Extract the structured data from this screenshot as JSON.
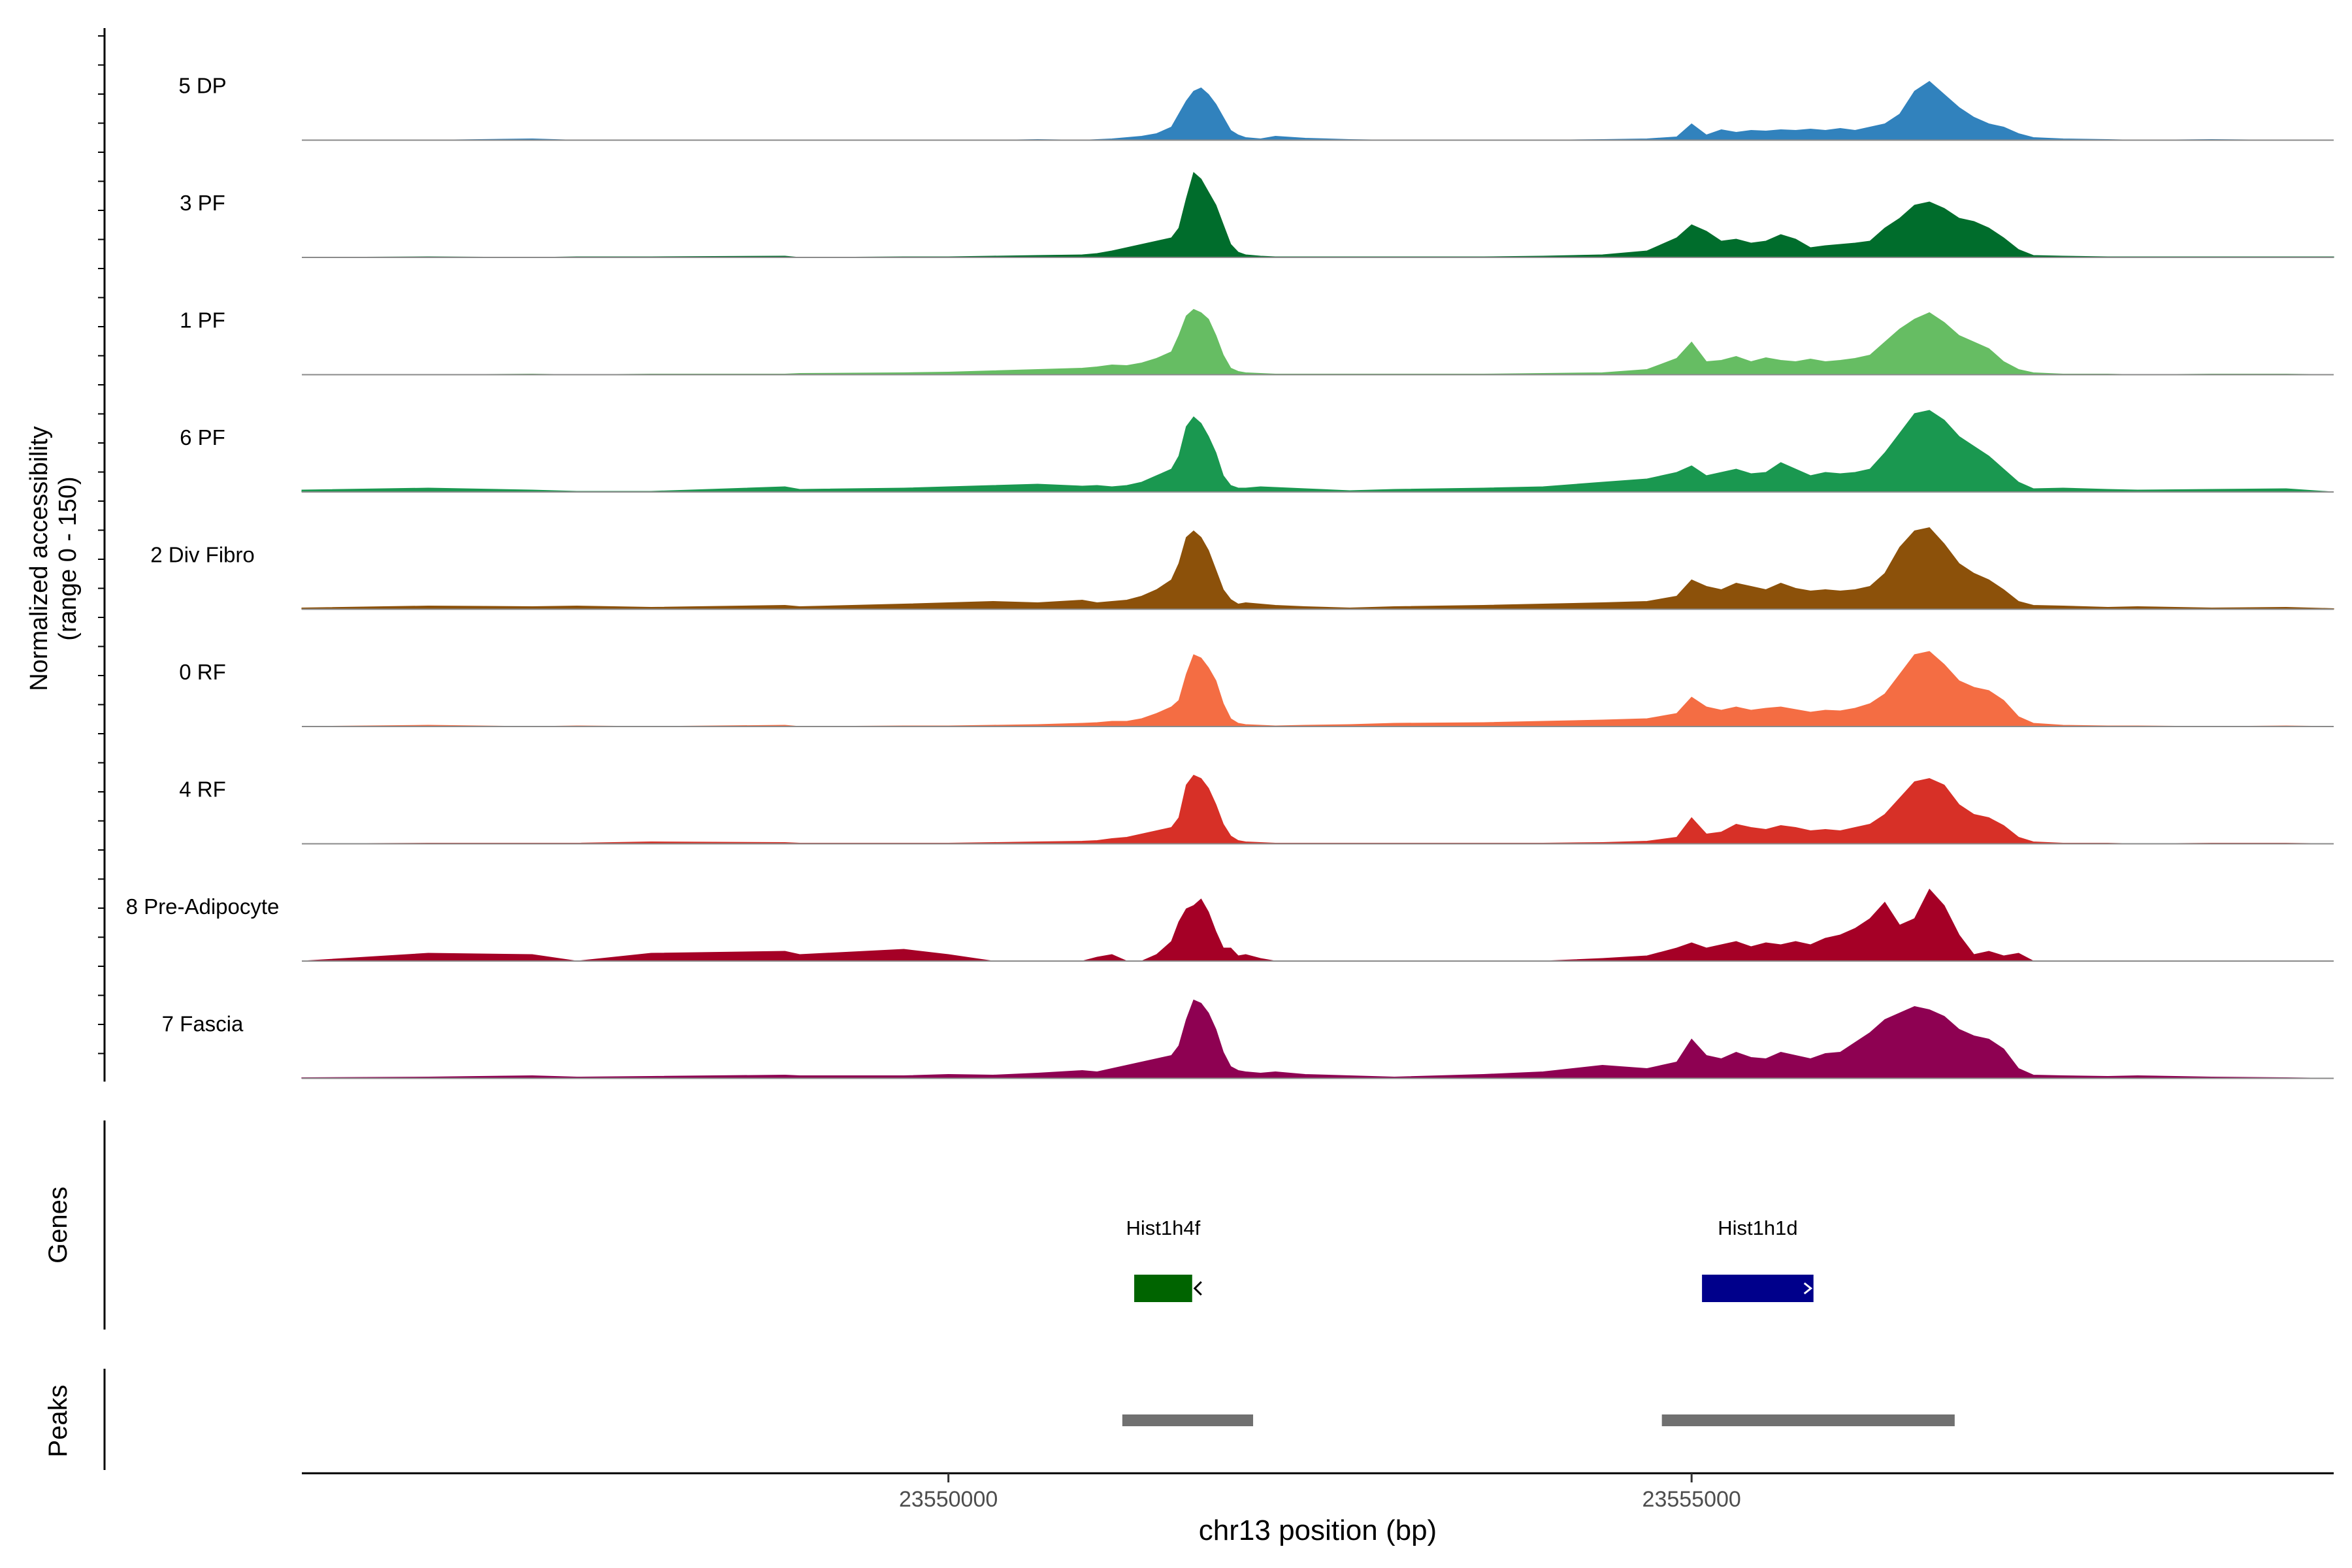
{
  "chart_data": {
    "type": "area",
    "title": "",
    "chromosome": "chr13",
    "xlabel": "chr13 position (bp)",
    "ylabel_line1": "Normalized accessibility",
    "ylabel_line2": "(range 0 - 150)",
    "ylim": [
      0,
      150
    ],
    "xlim": [
      23545650,
      23559320
    ],
    "x_ticks": [
      {
        "value": 23550000,
        "label": "23550000"
      },
      {
        "value": 23555000,
        "label": "23555000"
      }
    ],
    "gene_track_label": "Genes",
    "peak_track_label": "Peaks",
    "profile_x": [
      23545650,
      23546500,
      23547200,
      23547500,
      23548000,
      23548900,
      23549000,
      23549700,
      23550000,
      23550300,
      23550600,
      23550900,
      23551000,
      23551100,
      23551200,
      23551300,
      23551400,
      23551500,
      23551550,
      23551600,
      23551650,
      23551700,
      23551750,
      23551800,
      23551850,
      23551900,
      23551950,
      23552000,
      23552100,
      23552200,
      23552400,
      23552700,
      23553000,
      23553600,
      23554000,
      23554400,
      23554700,
      23554900,
      23555000,
      23555100,
      23555200,
      23555300,
      23555400,
      23555500,
      23555600,
      23555700,
      23555800,
      23555900,
      23556000,
      23556100,
      23556200,
      23556300,
      23556400,
      23556500,
      23556600,
      23556700,
      23556800,
      23556900,
      23557000,
      23557100,
      23557200,
      23557300,
      23557500,
      23557800,
      23558000,
      23558500,
      23559000,
      23559320
    ],
    "tracks": [
      {
        "name": "5 DP",
        "color": "#3182BD",
        "values": [
          0,
          0,
          2,
          0,
          0,
          0,
          0,
          0,
          0,
          0,
          1,
          0,
          1,
          2,
          4,
          6,
          10,
          20,
          40,
          60,
          75,
          80,
          70,
          55,
          35,
          15,
          8,
          4,
          2,
          6,
          3,
          1,
          0,
          0,
          0,
          1,
          2,
          5,
          25,
          8,
          16,
          12,
          15,
          14,
          16,
          15,
          17,
          15,
          18,
          15,
          20,
          25,
          40,
          75,
          90,
          70,
          50,
          35,
          25,
          20,
          10,
          4,
          2,
          1,
          0,
          1,
          0,
          0
        ]
      },
      {
        "name": "3 PF",
        "color": "#006D2C",
        "values": [
          0,
          1,
          0,
          1,
          1,
          2,
          0,
          1,
          1,
          2,
          3,
          4,
          6,
          10,
          15,
          20,
          25,
          30,
          45,
          90,
          130,
          120,
          100,
          80,
          50,
          20,
          8,
          4,
          2,
          1,
          1,
          1,
          1,
          1,
          2,
          4,
          10,
          30,
          50,
          40,
          25,
          28,
          22,
          25,
          35,
          28,
          15,
          18,
          20,
          22,
          25,
          45,
          60,
          80,
          85,
          75,
          60,
          55,
          45,
          30,
          12,
          3,
          2,
          1,
          1,
          1,
          1,
          1
        ]
      },
      {
        "name": "1 PF",
        "color": "#66BD63",
        "values": [
          0,
          0,
          1,
          0,
          1,
          1,
          2,
          3,
          4,
          6,
          8,
          10,
          12,
          15,
          14,
          18,
          25,
          35,
          60,
          90,
          100,
          95,
          85,
          60,
          30,
          10,
          5,
          3,
          2,
          1,
          1,
          1,
          1,
          1,
          2,
          3,
          8,
          25,
          50,
          20,
          22,
          28,
          20,
          26,
          22,
          20,
          24,
          20,
          22,
          25,
          30,
          50,
          70,
          85,
          95,
          80,
          60,
          50,
          40,
          20,
          8,
          3,
          1,
          1,
          0,
          1,
          1,
          0
        ]
      },
      {
        "name": "6 PF",
        "color": "#1A9850",
        "values": [
          3,
          6,
          3,
          1,
          1,
          8,
          4,
          6,
          8,
          10,
          12,
          9,
          10,
          8,
          10,
          15,
          25,
          35,
          55,
          100,
          115,
          105,
          85,
          60,
          25,
          10,
          6,
          6,
          8,
          7,
          5,
          2,
          4,
          6,
          8,
          15,
          20,
          30,
          40,
          25,
          30,
          35,
          28,
          30,
          45,
          35,
          25,
          30,
          28,
          30,
          35,
          60,
          90,
          120,
          125,
          110,
          85,
          70,
          55,
          35,
          15,
          5,
          6,
          4,
          3,
          4,
          5,
          0
        ]
      },
      {
        "name": "2 Div Fibro",
        "color": "#8C510A",
        "values": [
          2,
          5,
          4,
          5,
          3,
          6,
          4,
          8,
          10,
          12,
          10,
          14,
          10,
          12,
          14,
          20,
          30,
          45,
          70,
          110,
          120,
          110,
          90,
          60,
          30,
          15,
          8,
          10,
          8,
          6,
          4,
          2,
          4,
          6,
          8,
          10,
          12,
          20,
          45,
          35,
          30,
          40,
          35,
          30,
          40,
          32,
          28,
          30,
          28,
          30,
          35,
          55,
          95,
          120,
          125,
          100,
          70,
          55,
          45,
          30,
          12,
          6,
          5,
          3,
          4,
          2,
          3,
          1
        ]
      },
      {
        "name": "0 RF",
        "color": "#F46D43",
        "values": [
          0,
          2,
          0,
          1,
          0,
          2,
          0,
          1,
          1,
          2,
          3,
          5,
          6,
          8,
          8,
          12,
          20,
          30,
          40,
          80,
          110,
          105,
          90,
          70,
          35,
          12,
          5,
          3,
          2,
          1,
          2,
          3,
          5,
          6,
          8,
          10,
          12,
          20,
          45,
          30,
          25,
          30,
          25,
          28,
          30,
          26,
          22,
          25,
          24,
          28,
          35,
          50,
          80,
          110,
          115,
          95,
          70,
          60,
          55,
          40,
          15,
          5,
          2,
          1,
          1,
          0,
          1,
          0
        ]
      },
      {
        "name": "4 RF",
        "color": "#D73027",
        "values": [
          0,
          1,
          1,
          1,
          3,
          2,
          1,
          1,
          1,
          2,
          3,
          4,
          5,
          8,
          10,
          15,
          20,
          25,
          40,
          90,
          105,
          100,
          85,
          60,
          30,
          12,
          5,
          3,
          2,
          1,
          1,
          1,
          1,
          1,
          1,
          2,
          4,
          10,
          40,
          15,
          18,
          30,
          25,
          22,
          28,
          25,
          20,
          22,
          20,
          25,
          30,
          45,
          70,
          95,
          100,
          90,
          60,
          45,
          40,
          28,
          10,
          3,
          1,
          1,
          0,
          1,
          1,
          0
        ]
      },
      {
        "name": "8 Pre-Adipocyte",
        "color": "#A50026",
        "values": [
          0,
          12,
          10,
          0,
          12,
          15,
          10,
          18,
          10,
          0,
          0,
          0,
          6,
          10,
          0,
          0,
          10,
          30,
          60,
          80,
          85,
          95,
          75,
          45,
          20,
          20,
          8,
          10,
          4,
          0,
          0,
          0,
          0,
          0,
          0,
          4,
          8,
          20,
          28,
          20,
          25,
          30,
          22,
          28,
          25,
          30,
          25,
          35,
          40,
          50,
          65,
          90,
          55,
          65,
          110,
          85,
          40,
          10,
          15,
          8,
          12,
          0,
          0,
          0,
          0,
          0,
          0,
          0
        ]
      },
      {
        "name": "7 Fascia",
        "color": "#8E0152",
        "values": [
          1,
          2,
          4,
          2,
          3,
          5,
          4,
          4,
          6,
          5,
          8,
          12,
          10,
          15,
          20,
          25,
          30,
          35,
          50,
          90,
          120,
          115,
          100,
          75,
          40,
          18,
          12,
          10,
          8,
          10,
          6,
          4,
          2,
          6,
          10,
          20,
          15,
          25,
          60,
          35,
          30,
          40,
          32,
          30,
          40,
          35,
          30,
          38,
          40,
          55,
          70,
          90,
          100,
          110,
          105,
          95,
          75,
          65,
          60,
          45,
          15,
          5,
          4,
          3,
          4,
          2,
          1,
          0
        ]
      }
    ],
    "genes": [
      {
        "name": "Hist1h4f",
        "start": 23551250,
        "end": 23551640,
        "strand": "-",
        "color": "#006400"
      },
      {
        "name": "Hist1h1d",
        "start": 23555070,
        "end": 23555820,
        "strand": "+",
        "color": "#00008B"
      }
    ],
    "peaks": [
      {
        "start": 23551170,
        "end": 23552050
      },
      {
        "start": 23554800,
        "end": 23556770
      }
    ],
    "peak_color": "#707070"
  }
}
